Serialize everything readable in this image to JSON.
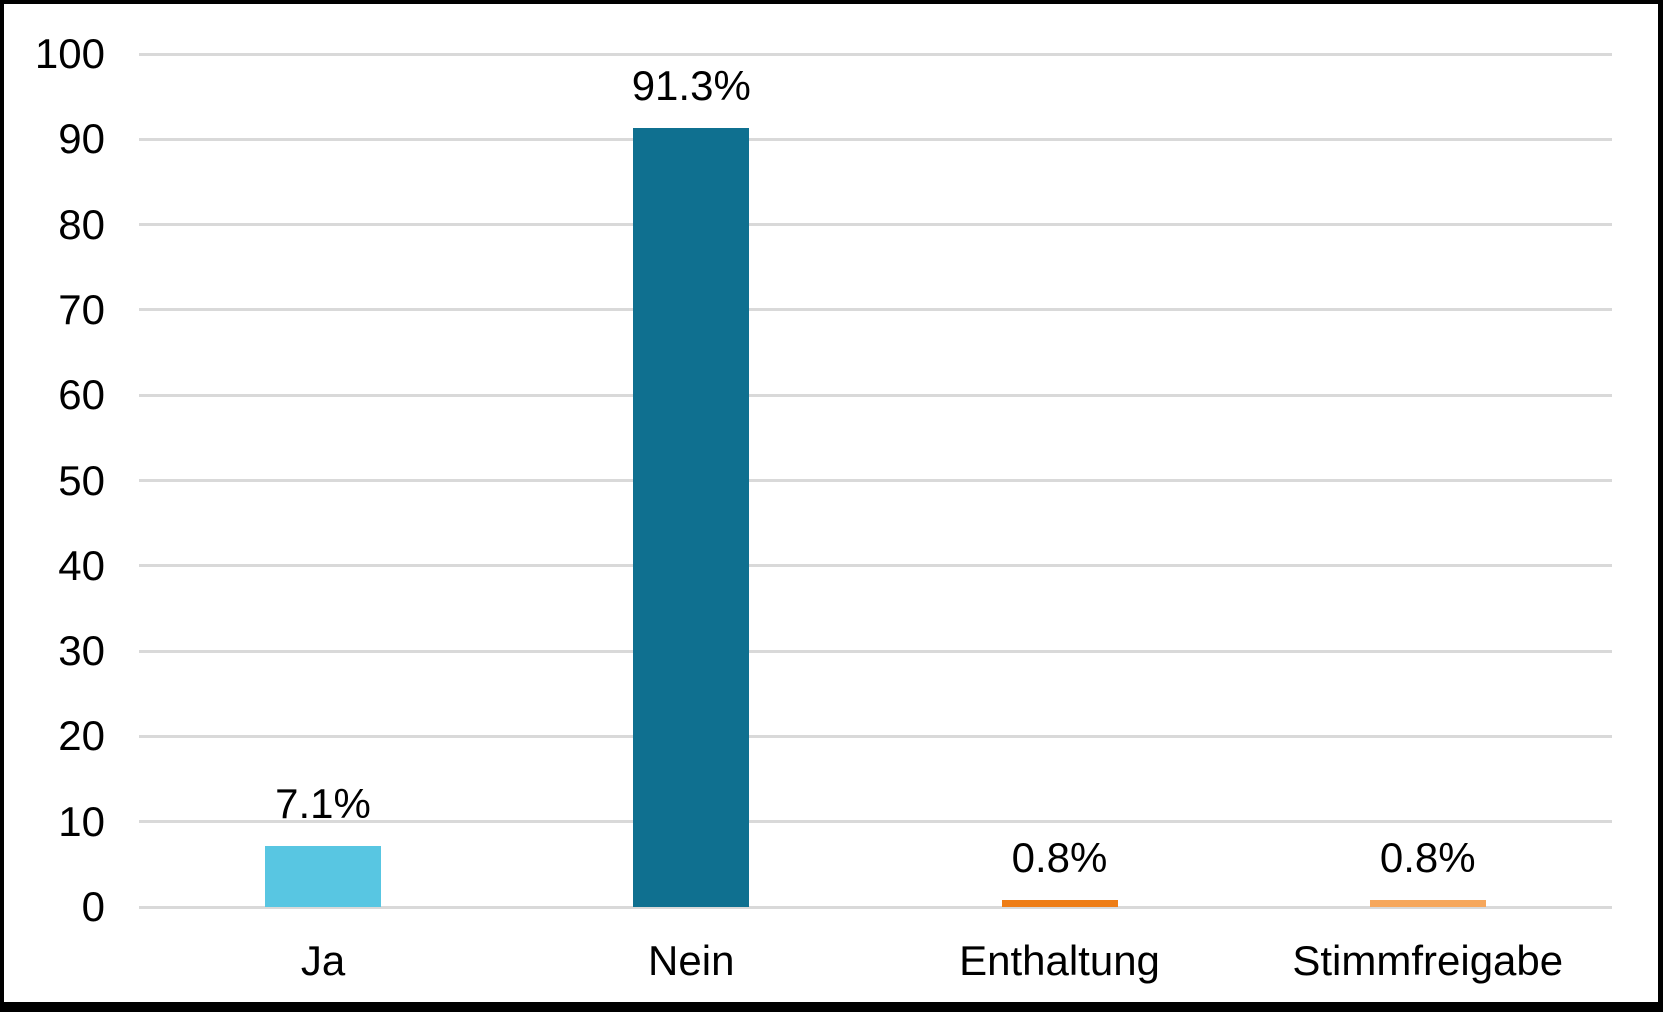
{
  "chart_data": {
    "type": "bar",
    "title": "",
    "xlabel": "",
    "ylabel": "",
    "categories": [
      "Ja",
      "Nein",
      "Enthaltung",
      "Stimmfreigabe"
    ],
    "values": [
      7.1,
      91.3,
      0.8,
      0.8
    ],
    "value_labels": [
      "7.1%",
      "91.3%",
      "0.8%",
      "0.8%"
    ],
    "bar_colors": [
      "#58C6E2",
      "#0F7090",
      "#EE7D16",
      "#F6A75C"
    ],
    "ylim": [
      0,
      100
    ],
    "yticks": [
      0,
      10,
      20,
      30,
      40,
      50,
      60,
      70,
      80,
      90,
      100
    ],
    "grid": "horizontal",
    "gridline_color": "#D9D9D9",
    "frame_color": "#000000",
    "background_color": "#FFFFFF",
    "legend": "none"
  }
}
